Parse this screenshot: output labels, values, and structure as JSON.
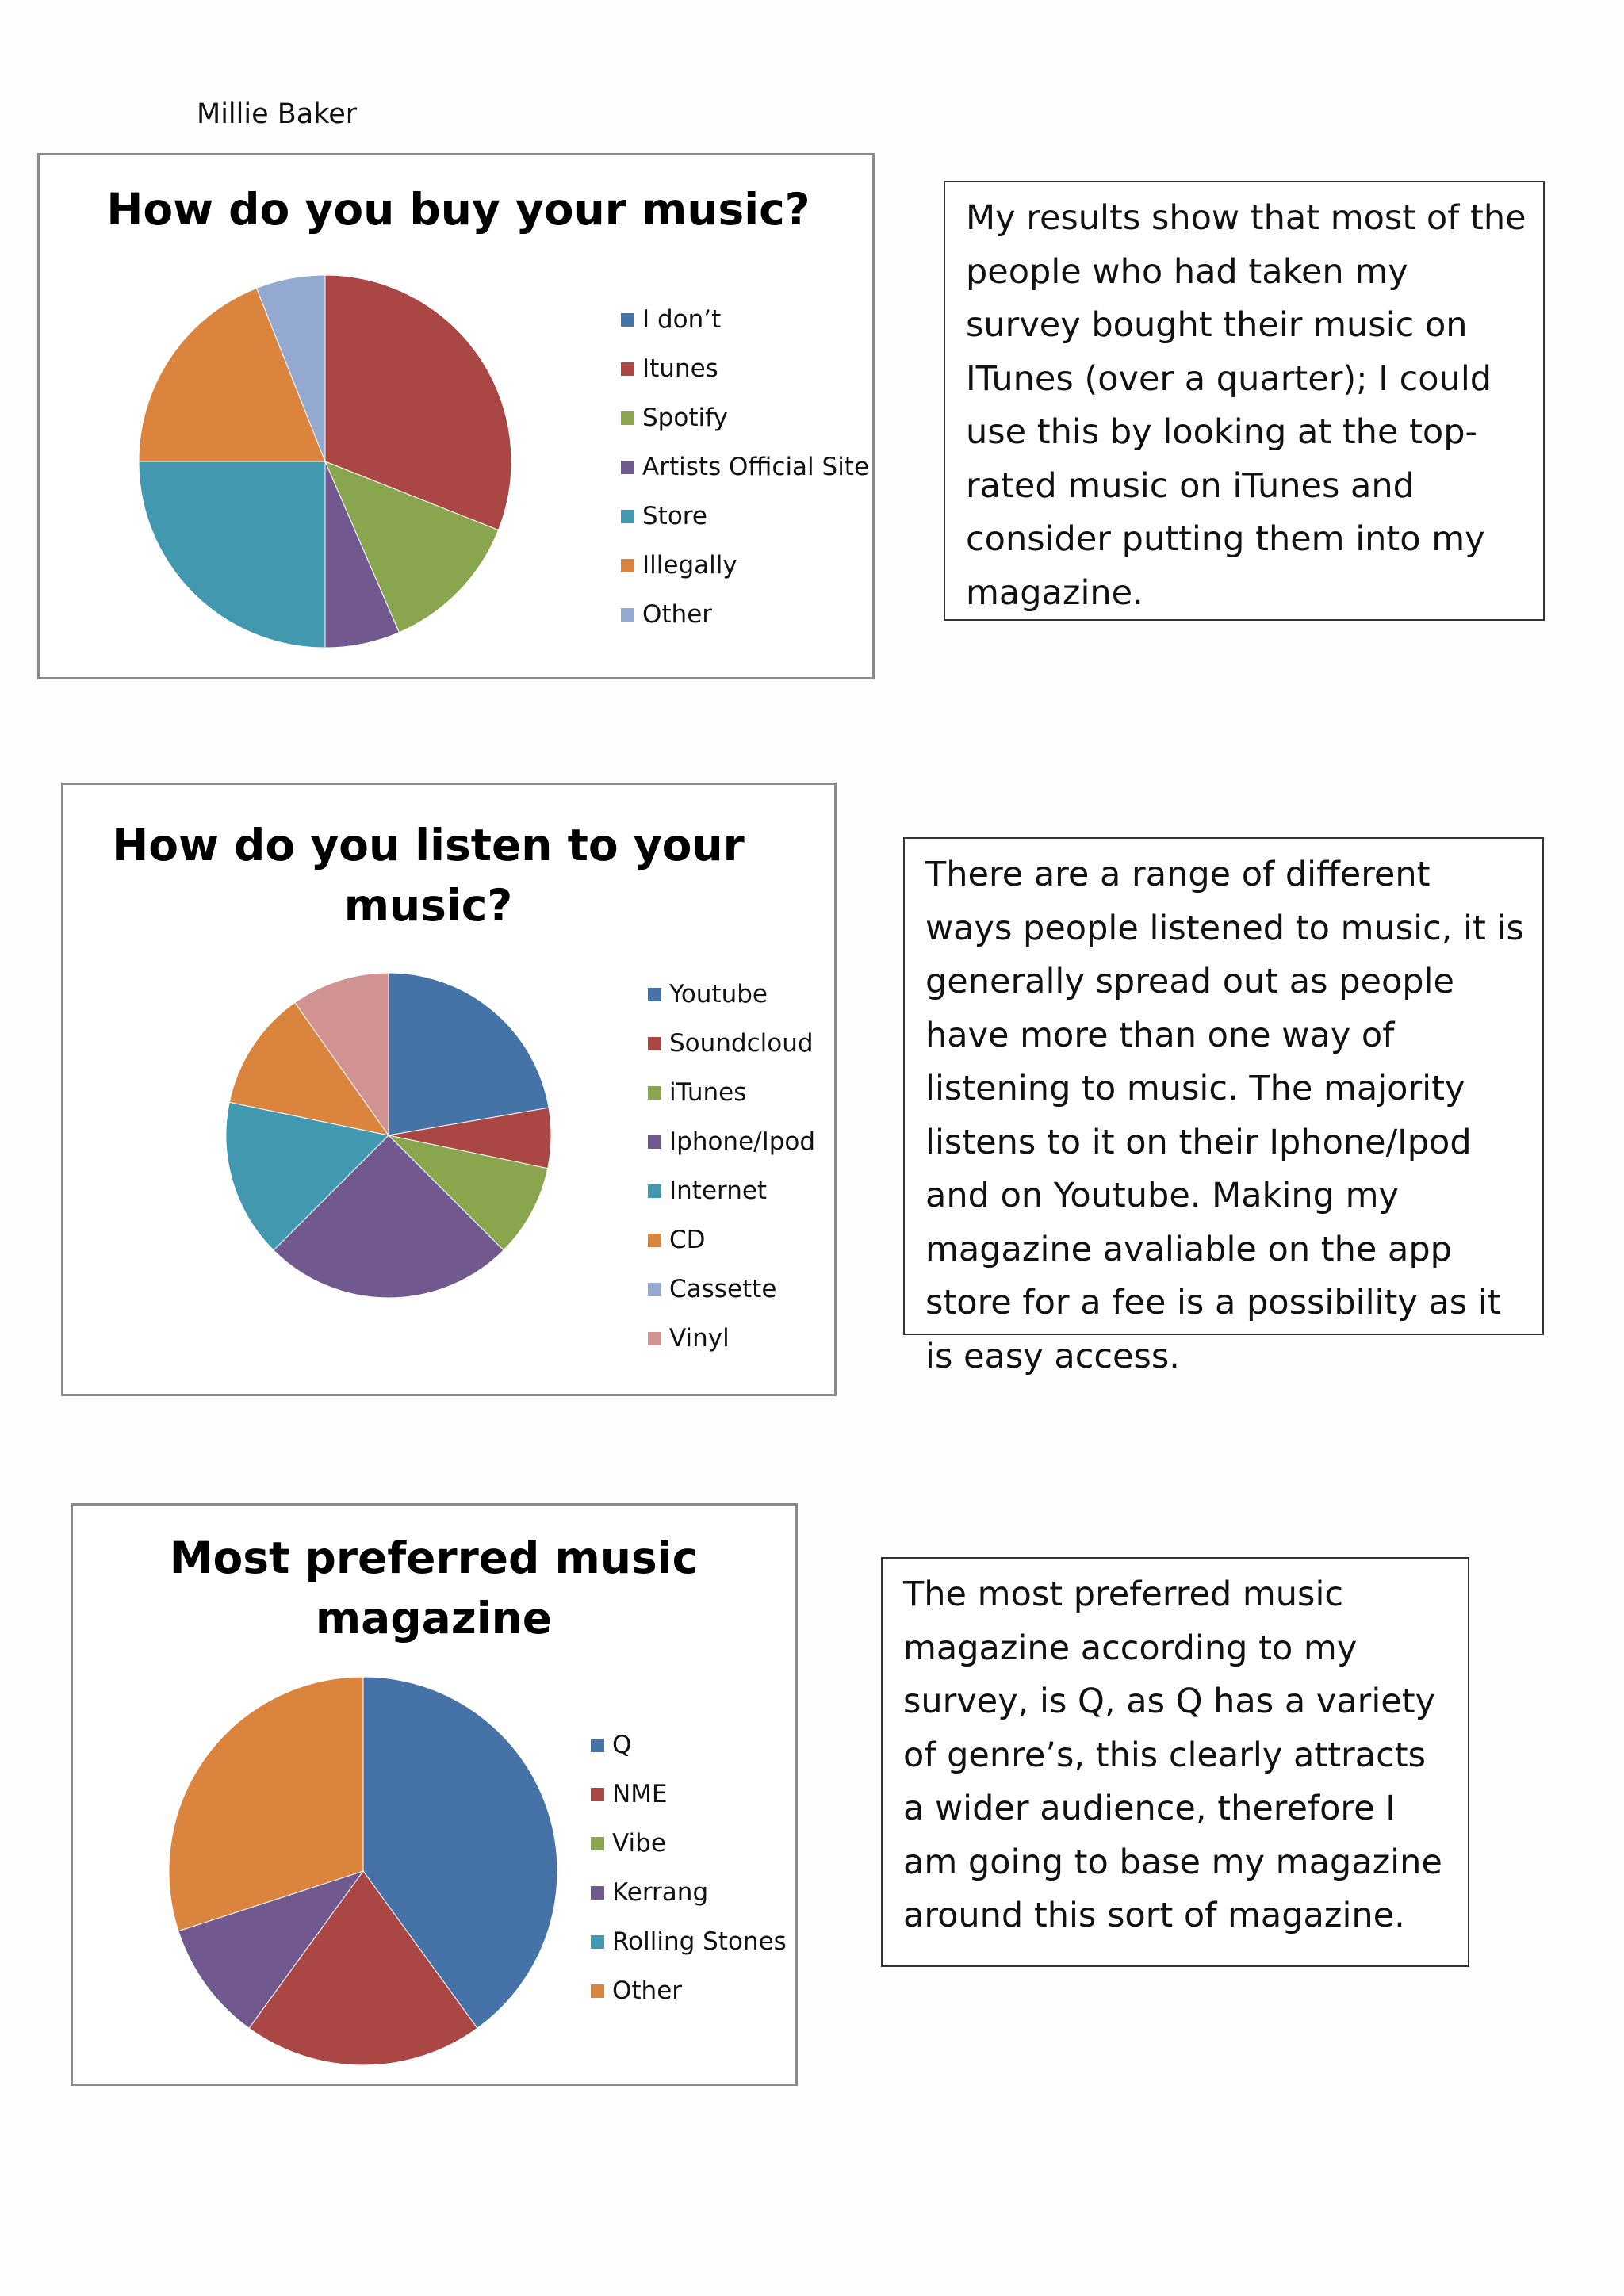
{
  "author": "Millie Baker",
  "charts": [
    {
      "title": "How do you buy your music?",
      "legend": [
        "I don’t",
        "Itunes",
        "Spotify",
        "Artists Official Site",
        "Store",
        "Illegally",
        "Other"
      ]
    },
    {
      "title": "How do you listen to your music?",
      "legend": [
        "Youtube",
        "Soundcloud",
        "iTunes",
        "Iphone/Ipod",
        "Internet",
        "CD",
        "Cassette",
        "Vinyl"
      ]
    },
    {
      "title": "Most preferred music magazine",
      "legend": [
        "Q",
        "NME",
        "Vibe",
        "Kerrang",
        "Rolling Stones",
        "Other"
      ]
    }
  ],
  "commentary": [
    "My results show that most of the people who had taken my survey bought their music on ITunes (over a quarter); I could use this by looking at the top-rated music on iTunes and consider putting them into my magazine.",
    "There are a range of different ways people listened to music, it is generally spread out as people have more than one way of listening to music. The majority listens to it on their Iphone/Ipod and on Youtube. Making my magazine avaliable on the app store for a fee is a possibility as it is easy access.",
    "The most preferred music magazine according to my survey, is Q, as Q has a variety of genre’s, this clearly attracts a wider audience, therefore I am going to base my magazine around this sort of magazine."
  ],
  "chart_data": [
    {
      "type": "pie",
      "title": "How do you buy your music?",
      "categories": [
        "I don’t",
        "Itunes",
        "Spotify",
        "Artists Official Site",
        "Store",
        "Illegally",
        "Other"
      ],
      "values": [
        0,
        31,
        12.5,
        6.5,
        25,
        19,
        6
      ],
      "colors": [
        "#4572a7",
        "#aa4643",
        "#89a54e",
        "#71588f",
        "#4198af",
        "#db843d",
        "#93a9cf"
      ]
    },
    {
      "type": "pie",
      "title": "How do you listen to your music?",
      "categories": [
        "Youtube",
        "Soundcloud",
        "iTunes",
        "Iphone/Ipod",
        "Internet",
        "CD",
        "Cassette",
        "Vinyl"
      ],
      "values": [
        20.5,
        5.5,
        8.5,
        23,
        14.5,
        11,
        0,
        9
      ],
      "colors": [
        "#4572a7",
        "#aa4643",
        "#89a54e",
        "#71588f",
        "#4198af",
        "#db843d",
        "#93a9cf",
        "#d19392"
      ]
    },
    {
      "type": "pie",
      "title": "Most preferred music magazine",
      "categories": [
        "Q",
        "NME",
        "Vibe",
        "Kerrang",
        "Rolling Stones",
        "Other"
      ],
      "values": [
        40,
        20,
        0,
        10,
        0,
        30
      ],
      "colors": [
        "#4572a7",
        "#aa4643",
        "#89a54e",
        "#71588f",
        "#4198af",
        "#db843d"
      ]
    }
  ]
}
